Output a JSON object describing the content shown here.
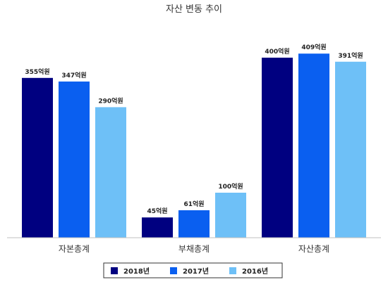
{
  "chart_data": {
    "type": "bar",
    "title": "자산 변동 추이",
    "categories": [
      "자본총계",
      "부채총계",
      "자산총계"
    ],
    "unit_suffix": "억원",
    "ylim": [
      0,
      450
    ],
    "grid": false,
    "legend_position": "bottom",
    "series": [
      {
        "name": "2018년",
        "color": "#000080",
        "values": [
          355,
          45,
          400
        ]
      },
      {
        "name": "2017년",
        "color": "#0a5ff0",
        "values": [
          347,
          61,
          409
        ]
      },
      {
        "name": "2016년",
        "color": "#6ec0f7",
        "values": [
          290,
          100,
          391
        ]
      }
    ]
  }
}
